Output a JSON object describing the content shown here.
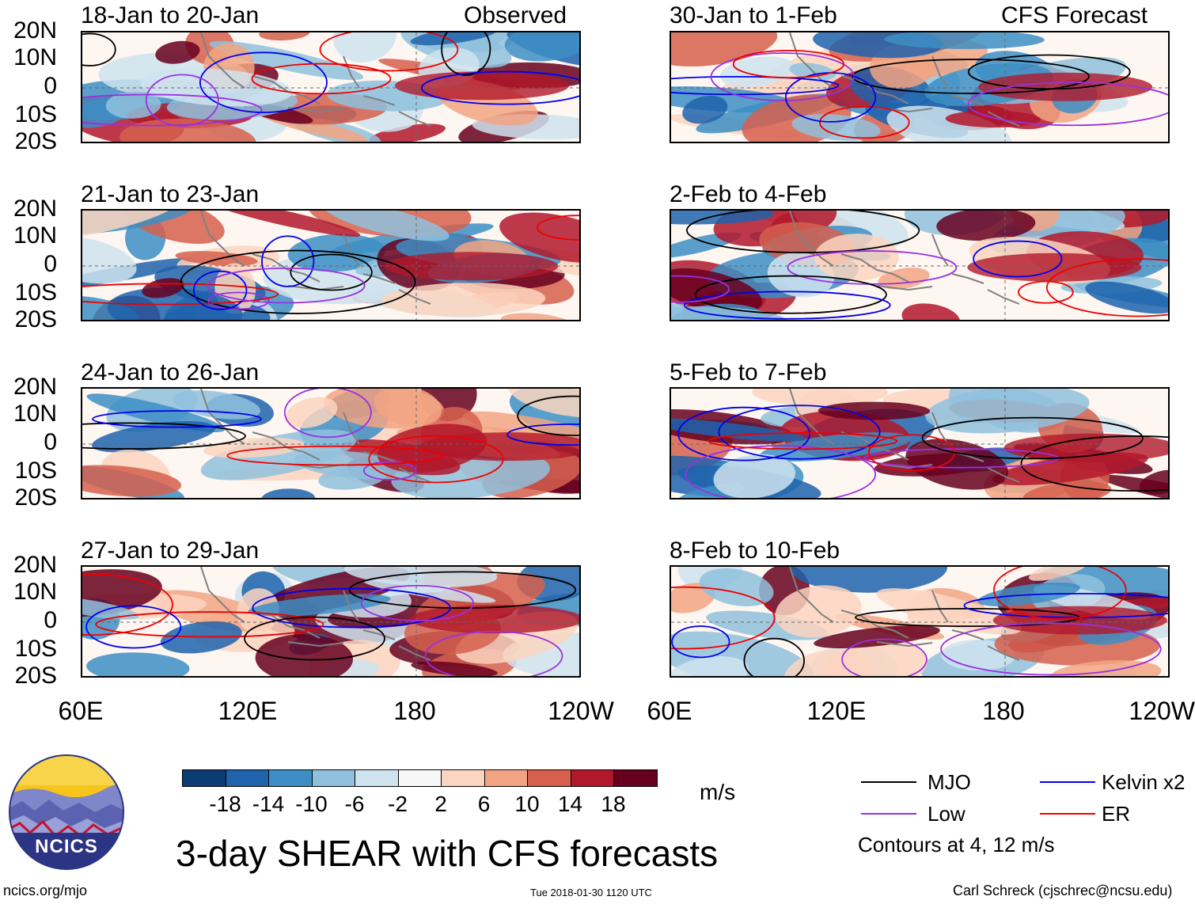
{
  "panels": [
    {
      "title": "18-Jan to 20-Jan",
      "tag": "Observed"
    },
    {
      "title": "30-Jan to 1-Feb",
      "tag": "CFS Forecast"
    },
    {
      "title": "21-Jan to 23-Jan",
      "tag": ""
    },
    {
      "title": "2-Feb to 4-Feb",
      "tag": ""
    },
    {
      "title": "24-Jan to 26-Jan",
      "tag": ""
    },
    {
      "title": "5-Feb to 7-Feb",
      "tag": ""
    },
    {
      "title": "27-Jan to 29-Jan",
      "tag": ""
    },
    {
      "title": "8-Feb to 10-Feb",
      "tag": ""
    }
  ],
  "lat_labels": [
    "20N",
    "10N",
    "0",
    "10S",
    "20S"
  ],
  "lon_labels": [
    "60E",
    "120E",
    "180",
    "120W"
  ],
  "colorbar": {
    "colors": [
      "#0b3b73",
      "#1f63ad",
      "#3d8ec4",
      "#8fc1dd",
      "#cfe3ef",
      "#f7f7f7",
      "#fcd5c0",
      "#f2a482",
      "#d6604d",
      "#b2182b",
      "#67001f"
    ],
    "labels": [
      "-18",
      "-14",
      "-10",
      "-6",
      "-2",
      "2",
      "6",
      "10",
      "14",
      "18"
    ],
    "units": "m/s"
  },
  "legend": {
    "items": [
      {
        "label": "MJO",
        "color": "#000000"
      },
      {
        "label": "Kelvin x2",
        "color": "#0000ee"
      },
      {
        "label": "Low",
        "color": "#9b30e0"
      },
      {
        "label": "ER",
        "color": "#ee0000"
      }
    ],
    "note": "Contours at 4, 12 m/s"
  },
  "logo_text": "NCICS",
  "main_title": "3-day SHEAR with CFS forecasts",
  "footer": {
    "left": "ncics.org/mjo",
    "center": "Tue 2018-01-30 1120 UTC",
    "right": "Carl Schreck (cjschrec@ncsu.edu)"
  }
}
